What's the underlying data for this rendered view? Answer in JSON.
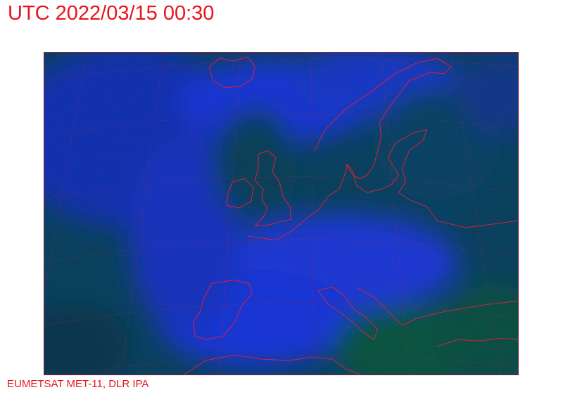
{
  "header": {
    "title": "UTC 2022/03/15 00:30"
  },
  "footer": {
    "credit": "EUMETSAT MET-11, DLR IPA"
  },
  "map": {
    "type": "satellite composite image",
    "colors": {
      "cloud_blue": "#1c3ce0",
      "dark_teal": "#0c4656",
      "land_green": "#0d5e3a",
      "coastline": "#d8203c",
      "text": "#e8141c"
    }
  }
}
